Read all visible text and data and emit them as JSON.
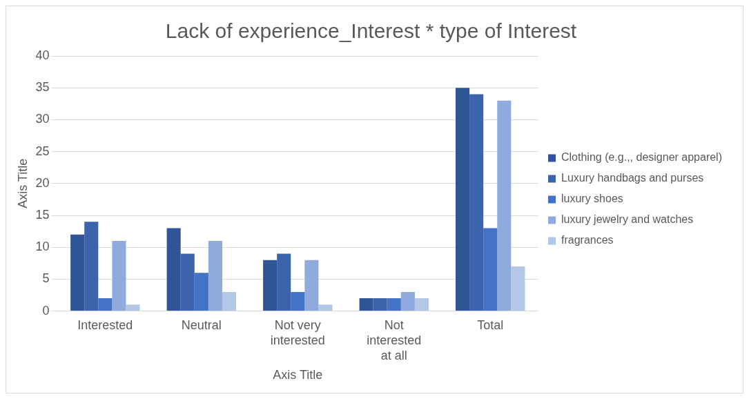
{
  "chart_data": {
    "type": "bar",
    "title": "Lack of experience_Interest * type of Interest",
    "xlabel": "Axis Title",
    "ylabel": "Axis Title",
    "categories": [
      "Interested",
      "Neutral",
      "Not very interested",
      "Not interested at all",
      "Total"
    ],
    "series": [
      {
        "name": "Clothing (e.g.,, designer apparel)",
        "color": "#2f5597",
        "values": [
          12,
          13,
          8,
          2,
          35
        ]
      },
      {
        "name": "Luxury handbags and purses",
        "color": "#3b64ad",
        "values": [
          14,
          9,
          9,
          2,
          34
        ]
      },
      {
        "name": "luxury shoes",
        "color": "#4472c4",
        "values": [
          2,
          6,
          3,
          2,
          13
        ]
      },
      {
        "name": "luxury jewelry and watches",
        "color": "#8faadc",
        "values": [
          11,
          11,
          8,
          3,
          33
        ]
      },
      {
        "name": "fragrances",
        "color": "#b4c7e7",
        "values": [
          1,
          3,
          1,
          2,
          7
        ]
      }
    ],
    "ylim": [
      0,
      40
    ],
    "yticks": [
      0,
      5,
      10,
      15,
      20,
      25,
      30,
      35,
      40
    ],
    "grid": "y",
    "legend": "right"
  }
}
